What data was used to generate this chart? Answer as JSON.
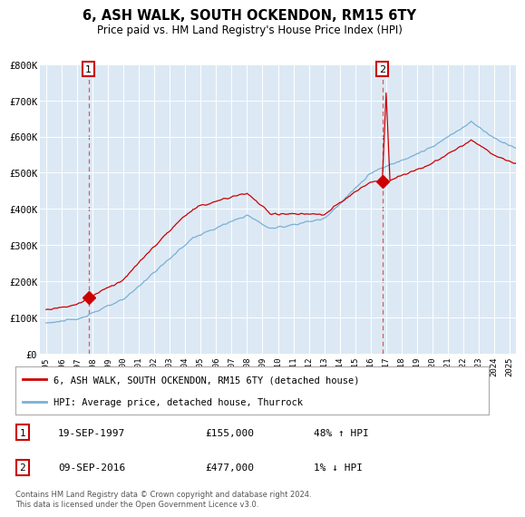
{
  "title": "6, ASH WALK, SOUTH OCKENDON, RM15 6TY",
  "subtitle": "Price paid vs. HM Land Registry's House Price Index (HPI)",
  "hpi_label": "HPI: Average price, detached house, Thurrock",
  "price_label": "6, ASH WALK, SOUTH OCKENDON, RM15 6TY (detached house)",
  "sale1_date": "19-SEP-1997",
  "sale1_price": 155000,
  "sale1_note": "48% ↑ HPI",
  "sale2_date": "09-SEP-2016",
  "sale2_price": 477000,
  "sale2_note": "1% ↓ HPI",
  "footer": "Contains HM Land Registry data © Crown copyright and database right 2024.\nThis data is licensed under the Open Government Licence v3.0.",
  "price_color": "#cc0000",
  "hpi_color": "#7ab0d4",
  "background_color": "#ffffff",
  "plot_bg_color": "#dce9f5",
  "ylim": [
    0,
    800000
  ],
  "yticks": [
    0,
    100000,
    200000,
    300000,
    400000,
    500000,
    600000,
    700000,
    800000
  ],
  "ytick_labels": [
    "£0",
    "£100K",
    "£200K",
    "£300K",
    "£400K",
    "£500K",
    "£600K",
    "£700K",
    "£800K"
  ],
  "sale1_x": 1997.75,
  "sale2_x": 2016.75
}
